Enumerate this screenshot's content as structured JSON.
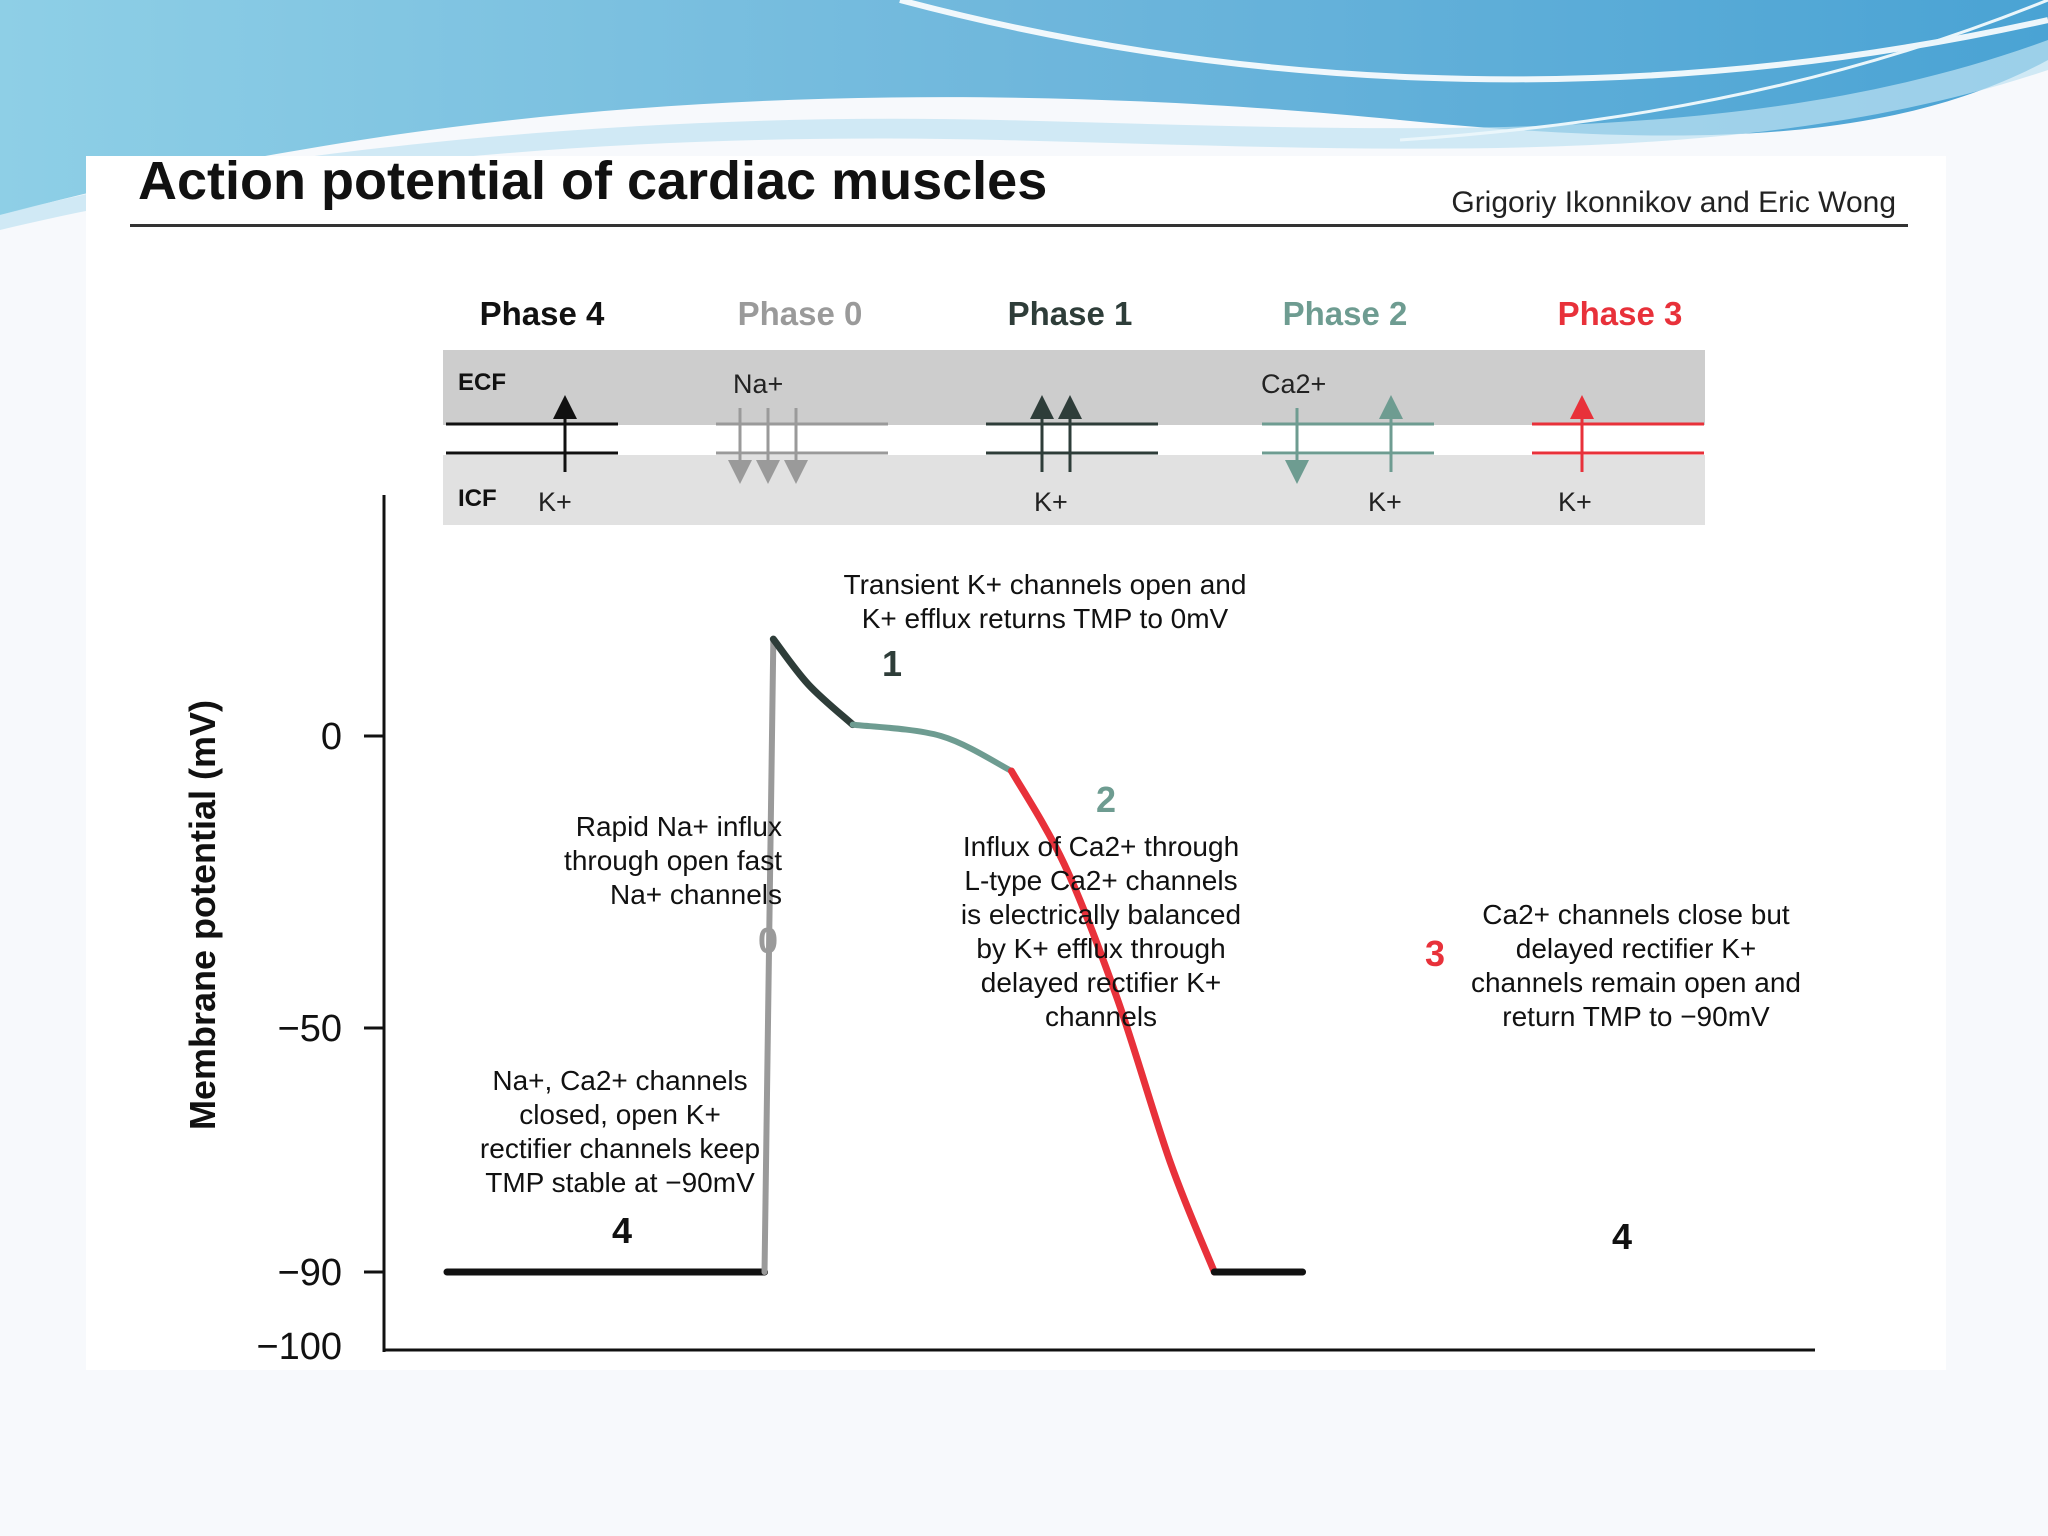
{
  "title": "Action potential of cardiac muscles",
  "authors": "Grigoriy Ikonnikov and Eric Wong",
  "colors": {
    "phase4": "#111111",
    "phase0": "#9a9a9a",
    "phase1": "#2e3d39",
    "phase2": "#6e9c91",
    "phase3": "#e8313a",
    "membrane_band": "#cdcdcd"
  },
  "y_axis": {
    "label": "Membrane potential (mV)",
    "ticks": [
      {
        "value": 0,
        "label": "0"
      },
      {
        "value": -50,
        "label": "−50"
      },
      {
        "value": -90,
        "label": "−90"
      },
      {
        "value": -100,
        "label": "−100"
      }
    ]
  },
  "membrane": {
    "ecf_label": "ECF",
    "icf_label": "ICF"
  },
  "phases": [
    {
      "name": "Phase 4",
      "ion_bottom": "K+"
    },
    {
      "name": "Phase 0",
      "ion_top": "Na+"
    },
    {
      "name": "Phase 1",
      "ion_bottom": "K+"
    },
    {
      "name": "Phase 2",
      "ion_top": "Ca2+",
      "ion_bottom": "K+"
    },
    {
      "name": "Phase 3",
      "ion_bottom": "K+"
    }
  ],
  "curve_labels": {
    "p4_left": "4",
    "p0": "0",
    "p1": "1",
    "p2": "2",
    "p3": "3",
    "p4_right": "4"
  },
  "annotations": {
    "phase1": [
      "Transient K+ channels open and",
      "K+ efflux returns TMP to 0mV"
    ],
    "phase0": [
      "Rapid Na+ influx",
      "through open fast",
      "Na+ channels"
    ],
    "phase2": [
      "Influx of Ca2+ through",
      "L-type Ca2+ channels",
      "is electrically balanced",
      "by K+ efflux through",
      "delayed rectifier K+",
      "channels"
    ],
    "phase3": [
      "Ca2+ channels close but",
      "delayed rectifier K+",
      "channels remain open and",
      "return TMP to −90mV"
    ],
    "phase4": [
      "Na+, Ca2+ channels",
      "closed, open K+",
      "rectifier channels keep",
      "TMP stable at −90mV"
    ]
  },
  "chart_data": {
    "type": "line",
    "ylabel": "Membrane potential (mV)",
    "ylim": [
      -100,
      20
    ],
    "yticks": [
      0,
      -50,
      -90,
      -100
    ],
    "series": [
      {
        "name": "4",
        "points": [
          [
            0,
            -90
          ],
          [
            36,
            -90
          ]
        ]
      },
      {
        "name": "0",
        "points": [
          [
            36,
            -90
          ],
          [
            37,
            17
          ]
        ]
      },
      {
        "name": "1",
        "points": [
          [
            37,
            17
          ],
          [
            41,
            9
          ],
          [
            46,
            2
          ]
        ]
      },
      {
        "name": "2",
        "points": [
          [
            46,
            2
          ],
          [
            56,
            0
          ],
          [
            64,
            -6
          ]
        ]
      },
      {
        "name": "3",
        "points": [
          [
            64,
            -6
          ],
          [
            70,
            -22
          ],
          [
            76,
            -45
          ],
          [
            82,
            -72
          ],
          [
            87,
            -90
          ]
        ]
      },
      {
        "name": "4",
        "points": [
          [
            87,
            -90
          ],
          [
            97,
            -90
          ]
        ]
      }
    ]
  }
}
